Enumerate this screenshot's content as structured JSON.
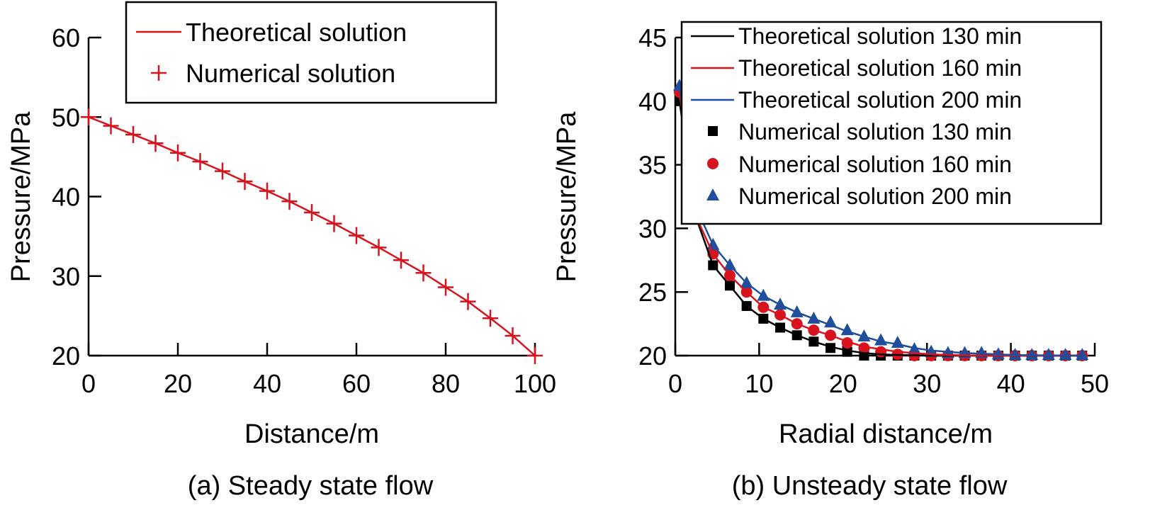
{
  "colors": {
    "red": "#d7141e",
    "black": "#000000",
    "blue": "#1f4e9c"
  },
  "chart_data": [
    {
      "type": "line",
      "caption": "(a) Steady state flow",
      "xlabel": "Distance/m",
      "ylabel": "Pressure/MPa",
      "xlim": [
        0,
        100
      ],
      "ylim": [
        20,
        60
      ],
      "xticks": [
        "0",
        "20",
        "40",
        "60",
        "80",
        "100"
      ],
      "yticks": [
        "20",
        "30",
        "40",
        "50",
        "60"
      ],
      "grid": false,
      "legend_position": "top-right",
      "legend": [
        "Theoretical solution",
        "Numerical solution"
      ],
      "x": [
        0,
        5,
        10,
        15,
        20,
        25,
        30,
        35,
        40,
        45,
        50,
        55,
        60,
        65,
        70,
        75,
        80,
        85,
        90,
        95,
        100
      ],
      "series": [
        {
          "name": "Theoretical solution",
          "style": "line",
          "values": [
            50,
            48.9,
            47.8,
            46.7,
            45.5,
            44.4,
            43.2,
            41.9,
            40.7,
            39.4,
            38.0,
            36.6,
            35.1,
            33.6,
            32.0,
            30.4,
            28.6,
            26.8,
            24.7,
            22.5,
            20
          ]
        },
        {
          "name": "Numerical solution",
          "style": "plus",
          "values": [
            50,
            48.9,
            47.8,
            46.7,
            45.5,
            44.4,
            43.2,
            41.9,
            40.7,
            39.4,
            38.0,
            36.6,
            35.1,
            33.6,
            32.0,
            30.4,
            28.6,
            26.8,
            24.7,
            22.5,
            20
          ]
        }
      ]
    },
    {
      "type": "line",
      "caption": "(b) Unsteady state flow",
      "xlabel": "Radial distance/m",
      "ylabel": "Pressure/MPa",
      "xlim": [
        0,
        50
      ],
      "ylim": [
        20,
        45
      ],
      "xticks": [
        "0",
        "10",
        "20",
        "30",
        "40",
        "50"
      ],
      "yticks": [
        "20",
        "25",
        "30",
        "35",
        "40",
        "45"
      ],
      "grid": false,
      "legend_position": "top-right",
      "legend": [
        "Theoretical solution 130 min",
        "Theoretical solution 160 min",
        "Theoretical solution 200 min",
        "Numerical solution 130 min",
        "Numerical solution 160 min",
        "Numerical solution 200 min"
      ],
      "x": [
        0.5,
        2.5,
        4.5,
        6.5,
        8.5,
        10.5,
        12.5,
        14.5,
        16.5,
        18.5,
        20.5,
        22.5,
        24.5,
        26.5,
        28.5,
        30.5,
        32.5,
        34.5,
        36.5,
        38.5,
        40.5,
        42.5,
        44.5,
        46.5,
        48.5
      ],
      "series": [
        {
          "name": "Theoretical solution 130 min",
          "style": "line",
          "color": "black",
          "values": [
            40.0,
            30.8,
            27.1,
            25.5,
            23.9,
            22.9,
            22.2,
            21.6,
            21.1,
            20.7,
            20.4,
            20.2,
            20.1,
            20.05,
            20.02,
            20.0,
            20.0,
            20.0,
            20.0,
            20.0,
            20.0,
            20.0,
            20.0,
            20.0,
            20.0
          ]
        },
        {
          "name": "Theoretical solution 160 min",
          "style": "line",
          "color": "red",
          "values": [
            40.7,
            30.9,
            28.0,
            26.3,
            25.0,
            23.8,
            23.2,
            22.5,
            22.0,
            21.6,
            21.1,
            20.7,
            20.5,
            20.3,
            20.2,
            20.1,
            20.05,
            20.02,
            20.0,
            20.0,
            20.0,
            20.0,
            20.0,
            20.0,
            20.0
          ]
        },
        {
          "name": "Theoretical solution 200 min",
          "style": "line",
          "color": "blue",
          "values": [
            41.2,
            31.6,
            28.7,
            27.1,
            25.7,
            24.7,
            24.0,
            23.4,
            22.9,
            22.4,
            21.9,
            21.5,
            21.1,
            20.9,
            20.6,
            20.4,
            20.3,
            20.2,
            20.15,
            20.1,
            20.05,
            20.03,
            20.02,
            20.0,
            20.0
          ]
        },
        {
          "name": "Numerical solution 130 min",
          "style": "square",
          "color": "black",
          "values": [
            40.0,
            30.8,
            27.1,
            25.5,
            23.9,
            22.9,
            22.2,
            21.6,
            21.1,
            20.6,
            20.3,
            20.0,
            20.0,
            20.0,
            20.0,
            20.0,
            20.0,
            20.0,
            20.0,
            20.0,
            20.0,
            20.0,
            20.0,
            20.0,
            20.0
          ]
        },
        {
          "name": "Numerical solution 160 min",
          "style": "circle",
          "color": "red",
          "values": [
            40.7,
            30.9,
            28.0,
            26.3,
            25.0,
            23.8,
            23.2,
            22.5,
            22.0,
            21.6,
            21.0,
            20.6,
            20.3,
            20.1,
            20.0,
            20.0,
            20.0,
            20.0,
            20.0,
            20.0,
            20.0,
            20.0,
            20.0,
            20.0,
            20.0
          ]
        },
        {
          "name": "Numerical solution 200 min",
          "style": "triangle",
          "color": "blue",
          "values": [
            41.2,
            31.6,
            28.7,
            27.1,
            25.7,
            24.7,
            24.0,
            23.4,
            22.9,
            22.6,
            22.0,
            21.5,
            21.2,
            21.0,
            20.5,
            20.3,
            20.2,
            20.2,
            20.2,
            20.1,
            20.05,
            20.05,
            20.05,
            20.05,
            20.05
          ]
        }
      ]
    }
  ]
}
